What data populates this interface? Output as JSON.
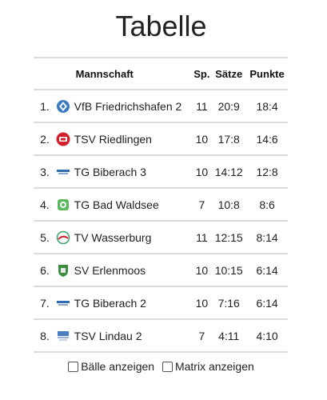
{
  "page": {
    "title": "Tabelle"
  },
  "table": {
    "headers": {
      "rank": "",
      "logo": "",
      "team": "Mannschaft",
      "games": "Sp.",
      "sets": "Sätze",
      "points": "Punkte"
    },
    "rows": [
      {
        "rank": "1.",
        "team": "VfB Friedrichshafen 2",
        "games": "11",
        "sets": "20:9",
        "points": "18:4",
        "logo_icon": "vfb-friedrichshafen-logo-icon"
      },
      {
        "rank": "2.",
        "team": "TSV Riedlingen",
        "games": "10",
        "sets": "17:8",
        "points": "14:6",
        "logo_icon": "tsv-riedlingen-logo-icon"
      },
      {
        "rank": "3.",
        "team": "TG Biberach 3",
        "games": "10",
        "sets": "14:12",
        "points": "12:8",
        "logo_icon": "tg-biberach-logo-icon"
      },
      {
        "rank": "4.",
        "team": "TG Bad Waldsee",
        "games": "7",
        "sets": "10:8",
        "points": "8:6",
        "logo_icon": "tg-bad-waldsee-logo-icon"
      },
      {
        "rank": "5.",
        "team": "TV Wasserburg",
        "games": "11",
        "sets": "12:15",
        "points": "8:14",
        "logo_icon": "tv-wasserburg-logo-icon"
      },
      {
        "rank": "6.",
        "team": "SV Erlenmoos",
        "games": "10",
        "sets": "10:15",
        "points": "6:14",
        "logo_icon": "sv-erlenmoos-logo-icon"
      },
      {
        "rank": "7.",
        "team": "TG Biberach 2",
        "games": "10",
        "sets": "7:16",
        "points": "6:14",
        "logo_icon": "tg-biberach-logo-icon"
      },
      {
        "rank": "8.",
        "team": "TSV Lindau 2",
        "games": "7",
        "sets": "4:11",
        "points": "4:10",
        "logo_icon": "tsv-lindau-logo-icon"
      }
    ]
  },
  "options": {
    "balls_label": "Bälle anzeigen",
    "balls_checked": false,
    "matrix_label": "Matrix anzeigen",
    "matrix_checked": false
  },
  "colors": {
    "divider": "#dcdcdc",
    "text": "#222222"
  }
}
